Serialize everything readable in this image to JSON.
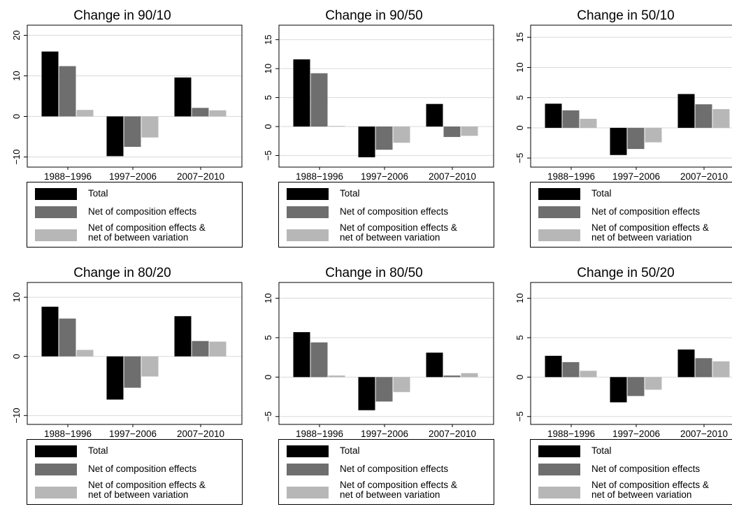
{
  "legend": {
    "items": [
      {
        "label": "Total",
        "color": "#000000"
      },
      {
        "label": "Net of composition effects",
        "color": "#6e6e6e"
      },
      {
        "label_line1": "Net of composition effects &",
        "label_line2": "net of between variation",
        "color": "#b7b7b7"
      }
    ]
  },
  "chart_data": [
    {
      "type": "bar",
      "title": "Change in 90/10",
      "categories": [
        "1988−1996",
        "1997−2006",
        "2007−2010"
      ],
      "series": [
        {
          "name": "Total",
          "values": [
            16,
            -9.8,
            9.6
          ]
        },
        {
          "name": "Net of composition effects",
          "values": [
            12.4,
            -7.5,
            2.1
          ]
        },
        {
          "name": "Net of composition effects & net of between variation",
          "values": [
            1.6,
            -5.2,
            1.5
          ]
        }
      ],
      "yticks": [
        20,
        10,
        0,
        -10
      ],
      "ytick_labels": [
        "20",
        "10",
        "0",
        "−10"
      ],
      "ylim": [
        -12.5,
        22.5
      ],
      "grid": true
    },
    {
      "type": "bar",
      "title": "Change in 90/50",
      "categories": [
        "1988−1996",
        "1997−2006",
        "2007−2010"
      ],
      "series": [
        {
          "name": "Total",
          "values": [
            11.6,
            -5.3,
            3.9
          ]
        },
        {
          "name": "Net of composition effects",
          "values": [
            9.2,
            -4.0,
            -1.8
          ]
        },
        {
          "name": "Net of composition effects & net of between variation",
          "values": [
            0.1,
            -2.8,
            -1.6
          ]
        }
      ],
      "yticks": [
        15,
        10,
        5,
        0,
        -5
      ],
      "ytick_labels": [
        "15",
        "10",
        "5",
        "0",
        "−5"
      ],
      "ylim": [
        -7,
        17.5
      ],
      "grid": true
    },
    {
      "type": "bar",
      "title": "Change in 50/10",
      "categories": [
        "1988−1996",
        "1997−2006",
        "2007−2010"
      ],
      "series": [
        {
          "name": "Total",
          "values": [
            4.0,
            -4.5,
            5.6
          ]
        },
        {
          "name": "Net of composition effects",
          "values": [
            2.9,
            -3.5,
            3.9
          ]
        },
        {
          "name": "Net of composition effects & net of between variation",
          "values": [
            1.5,
            -2.4,
            3.1
          ]
        }
      ],
      "yticks": [
        15,
        10,
        5,
        0,
        -5
      ],
      "ytick_labels": [
        "15",
        "10",
        "5",
        "0",
        "−5"
      ],
      "ylim": [
        -6.5,
        17
      ],
      "grid": true
    },
    {
      "type": "bar",
      "title": "Change in 80/20",
      "categories": [
        "1988−1996",
        "1997−2006",
        "2007−2010"
      ],
      "series": [
        {
          "name": "Total",
          "values": [
            8.4,
            -7.3,
            6.8
          ]
        },
        {
          "name": "Net of composition effects",
          "values": [
            6.4,
            -5.3,
            2.6
          ]
        },
        {
          "name": "Net of composition effects & net of between variation",
          "values": [
            1.1,
            -3.4,
            2.5
          ]
        }
      ],
      "yticks": [
        10,
        0,
        -10
      ],
      "ytick_labels": [
        "10",
        "0",
        "−10"
      ],
      "ylim": [
        -11.5,
        12.5
      ],
      "grid": true
    },
    {
      "type": "bar",
      "title": "Change in 80/50",
      "categories": [
        "1988−1996",
        "1997−2006",
        "2007−2010"
      ],
      "series": [
        {
          "name": "Total",
          "values": [
            5.7,
            -4.2,
            3.1
          ]
        },
        {
          "name": "Net of composition effects",
          "values": [
            4.4,
            -3.1,
            0.2
          ]
        },
        {
          "name": "Net of composition effects & net of between variation",
          "values": [
            0.2,
            -1.9,
            0.5
          ]
        }
      ],
      "yticks": [
        10,
        5,
        0,
        -5
      ],
      "ytick_labels": [
        "10",
        "5",
        "0",
        "−5"
      ],
      "ylim": [
        -6,
        12
      ],
      "grid": true
    },
    {
      "type": "bar",
      "title": "Change in 50/20",
      "categories": [
        "1988−1996",
        "1997−2006",
        "2007−2010"
      ],
      "series": [
        {
          "name": "Total",
          "values": [
            2.7,
            -3.2,
            3.5
          ]
        },
        {
          "name": "Net of composition effects",
          "values": [
            1.9,
            -2.4,
            2.4
          ]
        },
        {
          "name": "Net of composition effects & net of between variation",
          "values": [
            0.8,
            -1.6,
            2.0
          ]
        }
      ],
      "yticks": [
        10,
        5,
        0,
        -5
      ],
      "ytick_labels": [
        "10",
        "5",
        "0",
        "−5"
      ],
      "ylim": [
        -6,
        12
      ],
      "grid": true
    }
  ]
}
